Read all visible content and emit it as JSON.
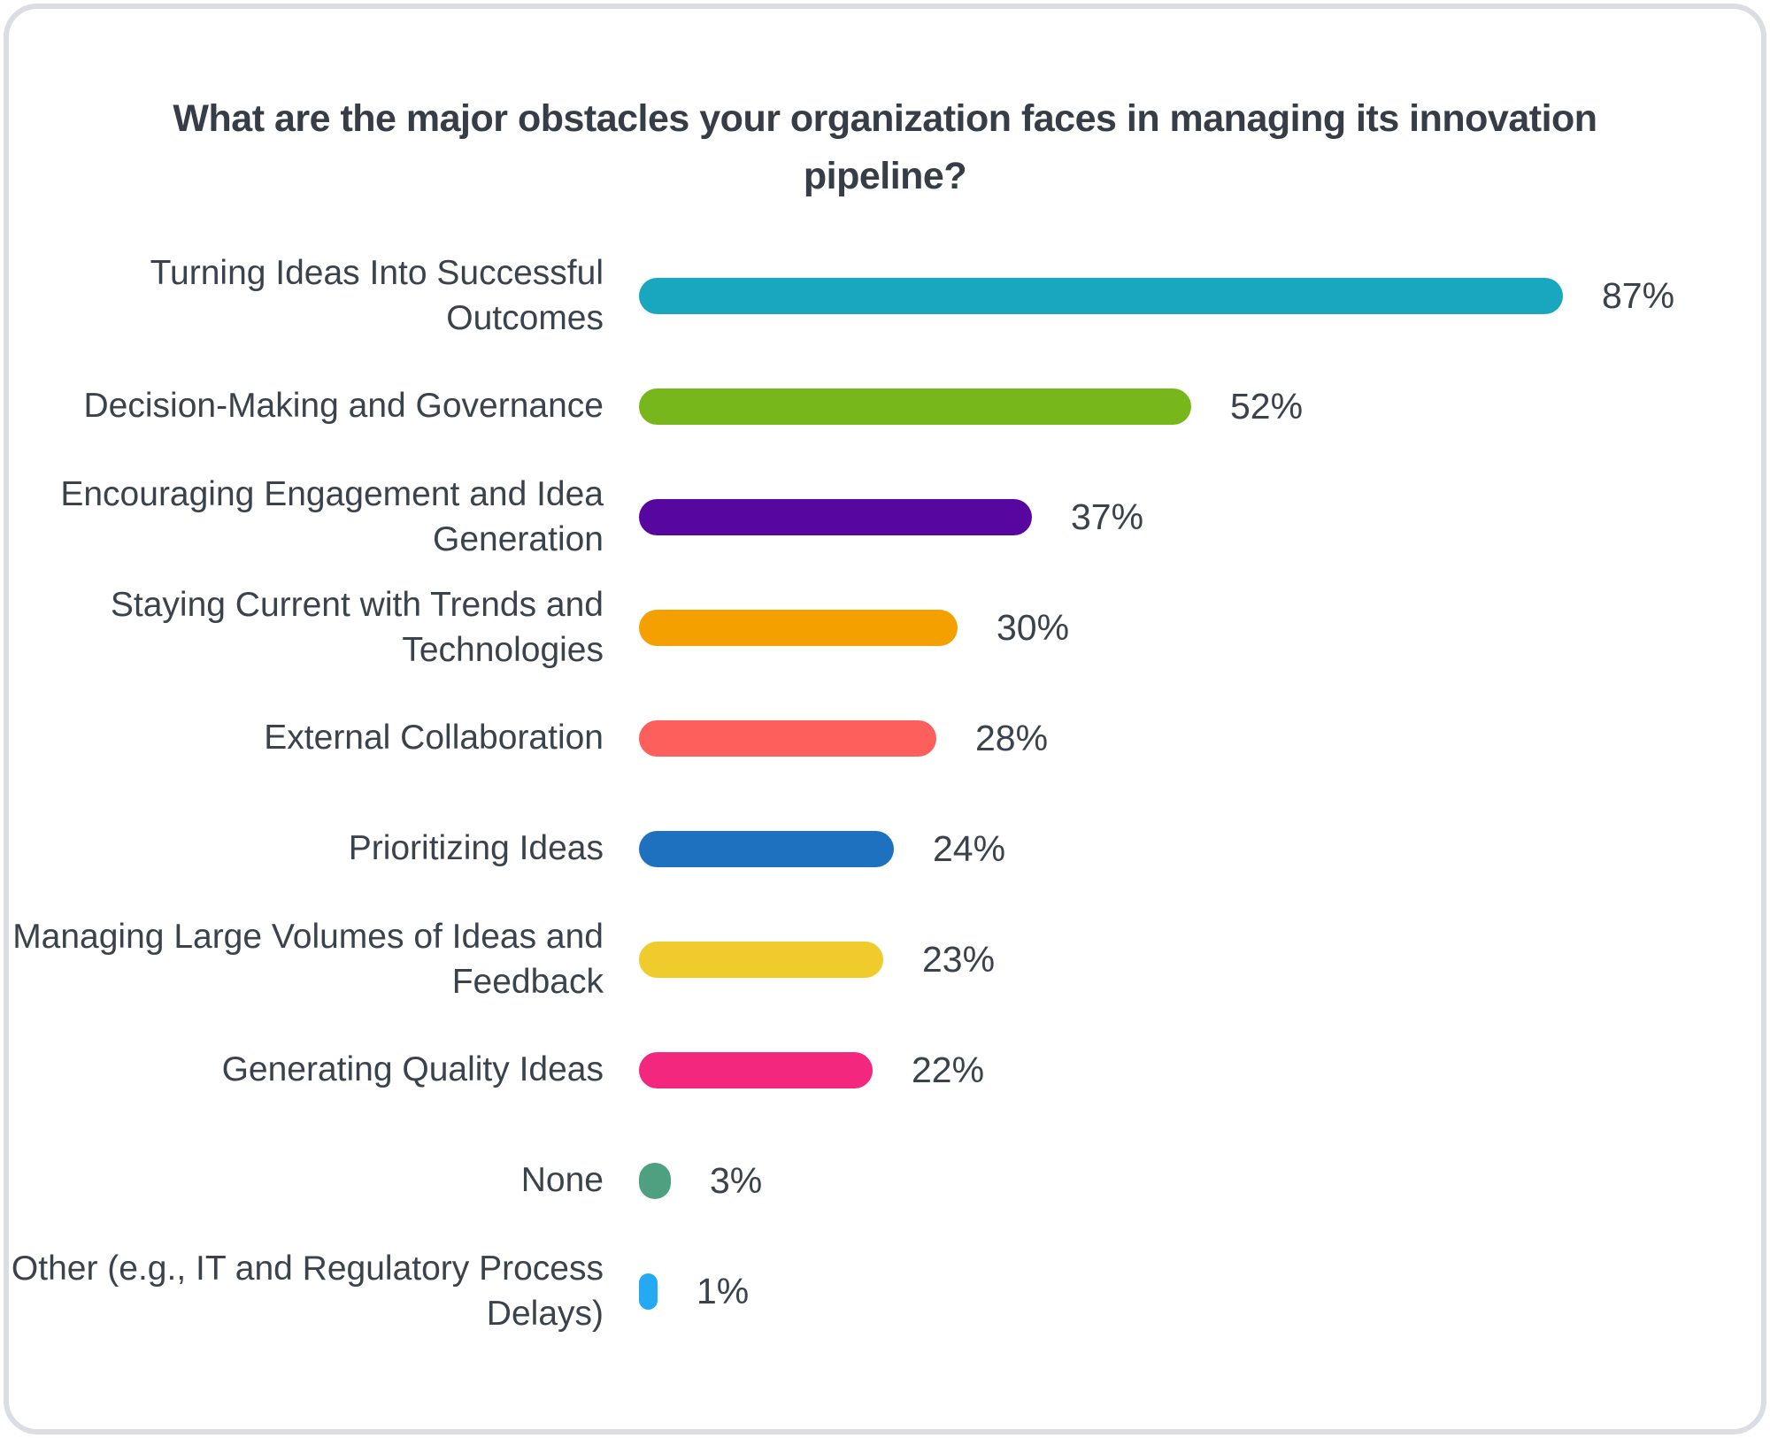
{
  "chart_data": {
    "type": "bar",
    "orientation": "horizontal",
    "title": "What are the major obstacles your organization faces in managing its innovation pipeline?",
    "categories": [
      "Turning Ideas Into Successful Outcomes",
      "Decision-Making and Governance",
      "Encouraging Engagement and Idea Generation",
      "Staying Current with Trends and Technologies",
      "External Collaboration",
      "Prioritizing Ideas",
      "Managing Large Volumes of Ideas and Feedback",
      "Generating Quality Ideas",
      "None",
      "Other (e.g., IT and Regulatory Process Delays)"
    ],
    "values": [
      87,
      52,
      37,
      30,
      28,
      24,
      23,
      22,
      3,
      1
    ],
    "value_labels": [
      "87%",
      "52%",
      "37%",
      "30%",
      "28%",
      "24%",
      "23%",
      "22%",
      "3%",
      "1%"
    ],
    "bar_colors": [
      "#18a7bf",
      "#77b71c",
      "#5706a0",
      "#f4a000",
      "#fc5f5c",
      "#1d71bf",
      "#f0cb2c",
      "#f3277e",
      "#4fa080",
      "#25a9f2"
    ],
    "xlim": [
      0,
      100
    ],
    "grid": false,
    "legend": "none",
    "value_label_position": "right-of-bar"
  },
  "colors": {
    "title_text": "#363d47",
    "label_text": "#3a424c",
    "card_border": "#dadee3",
    "card_background": "#ffffff"
  }
}
